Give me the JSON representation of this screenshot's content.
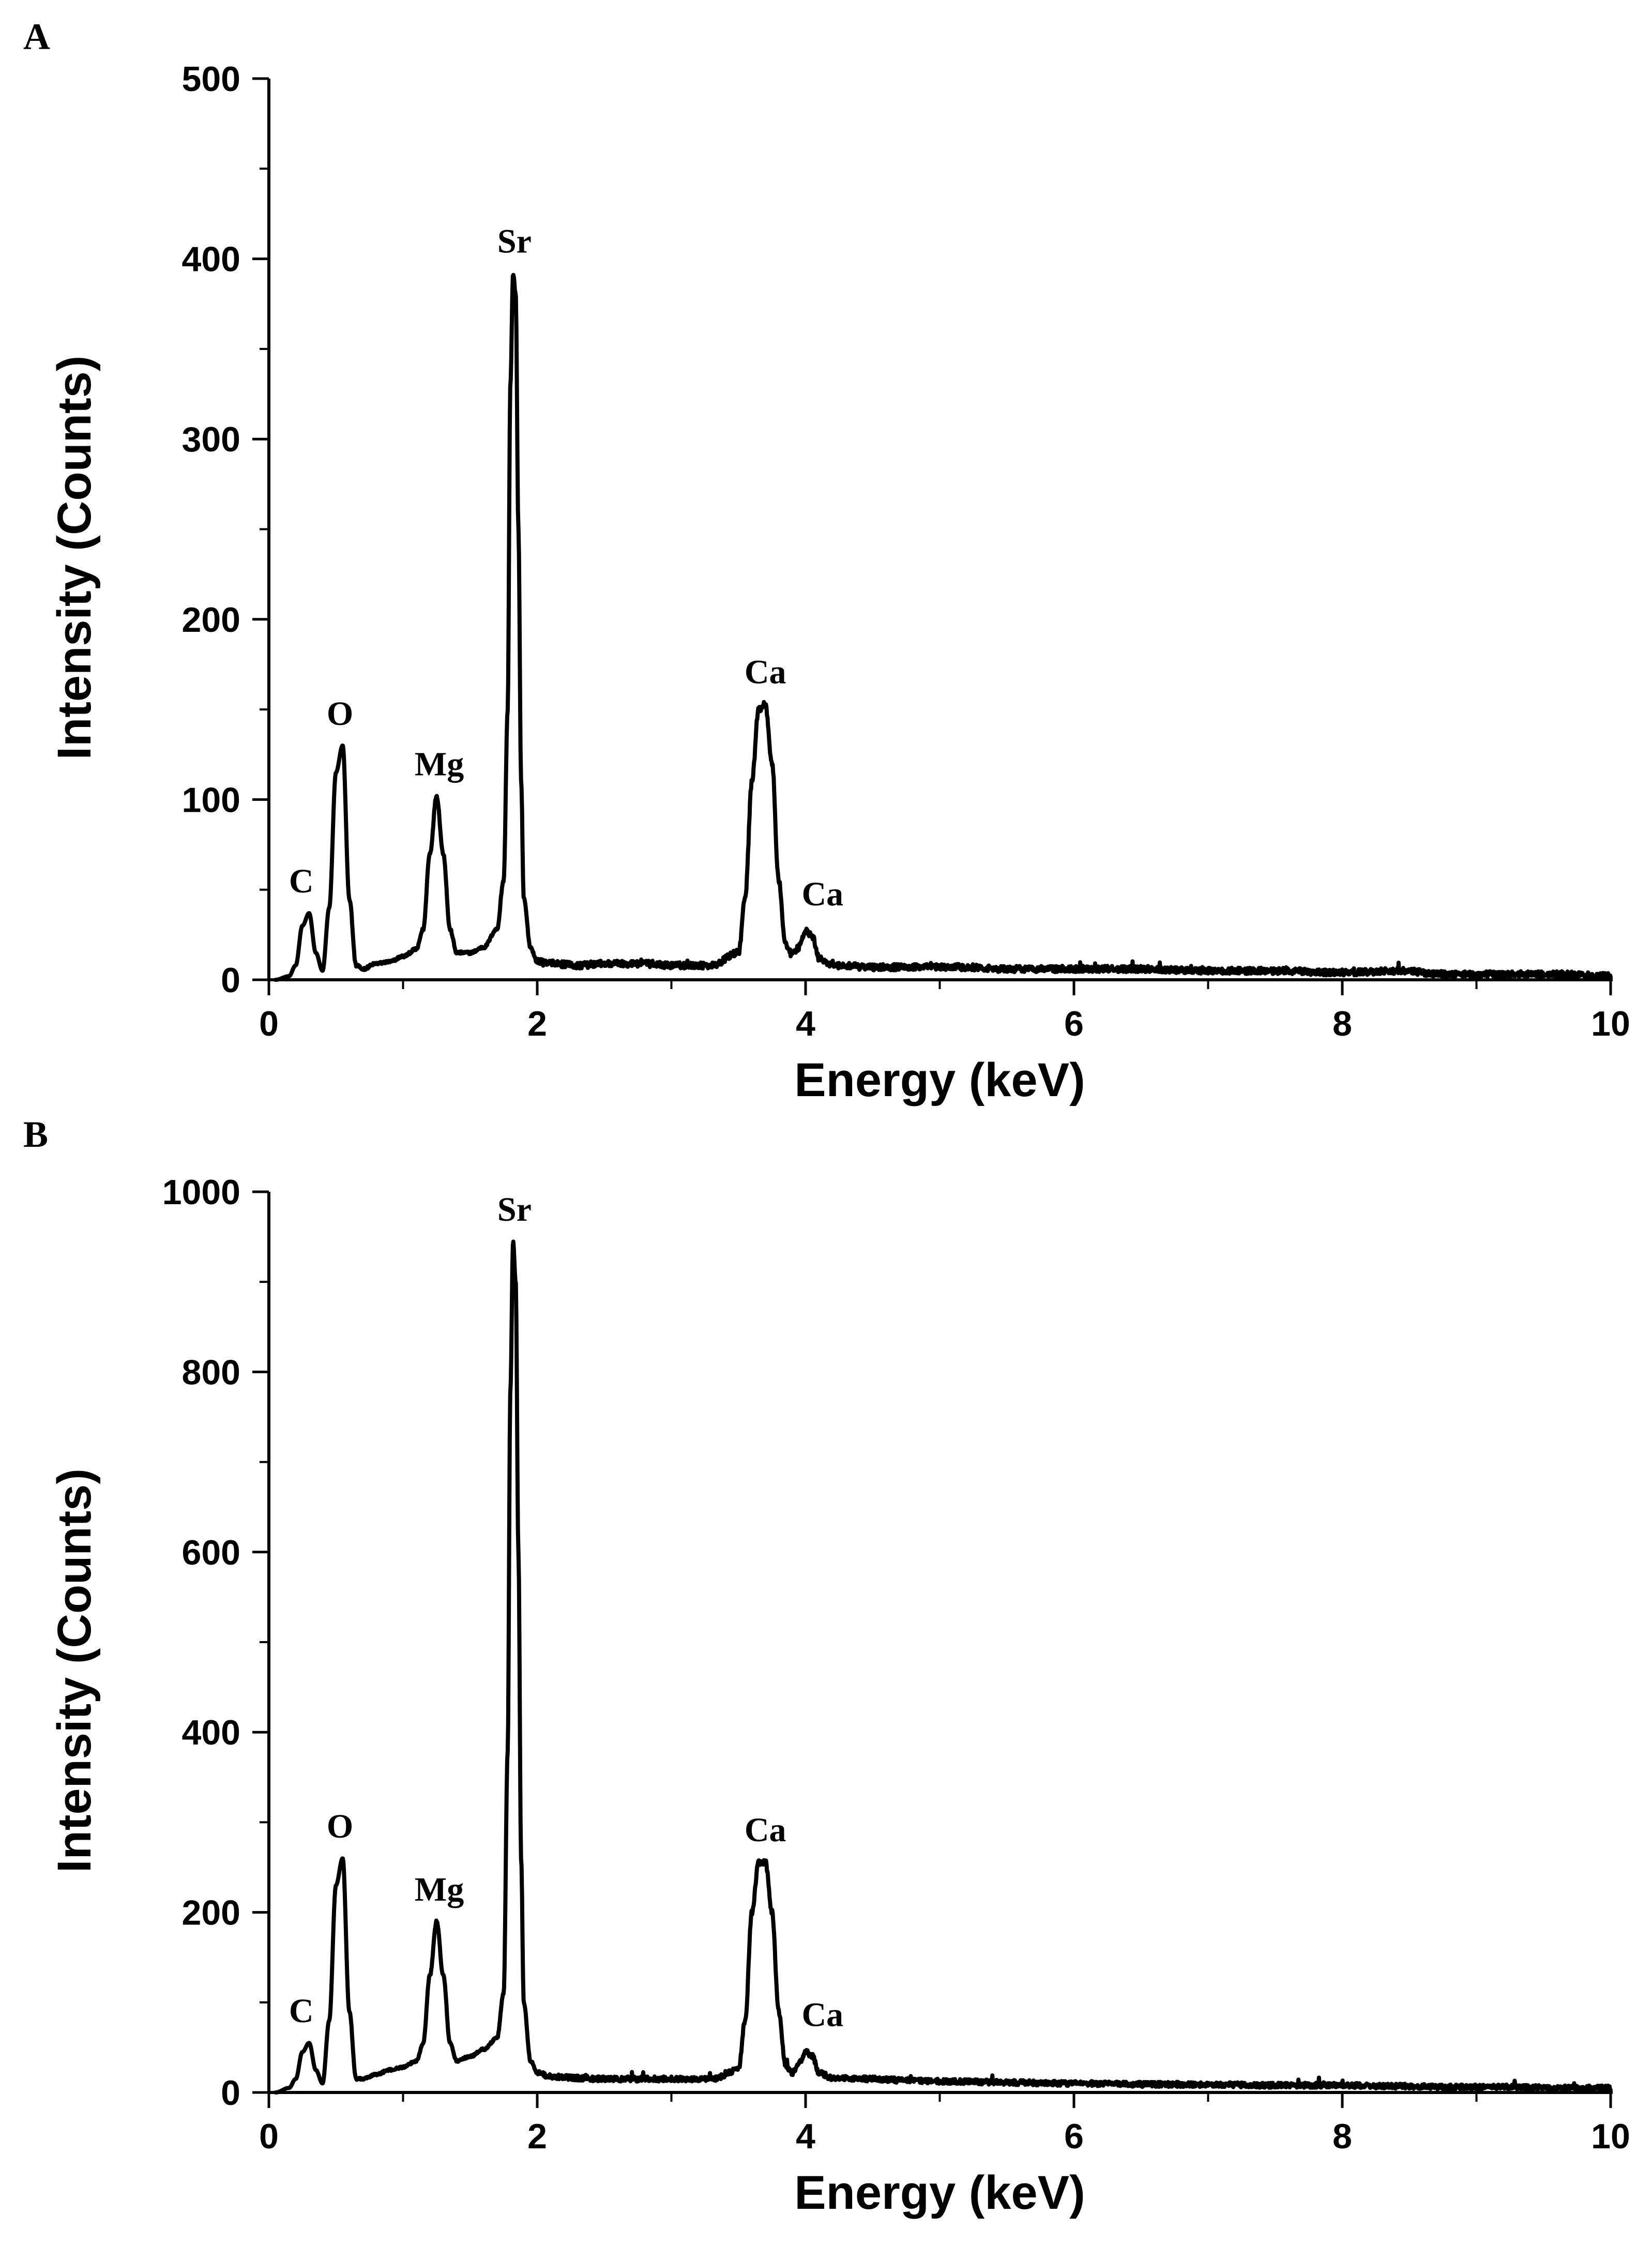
{
  "chart_data": [
    {
      "panel": "A",
      "type": "line",
      "xlabel": "Energy (keV)",
      "ylabel": "Intensity (Counts)",
      "xlim": [
        0,
        10
      ],
      "ylim": [
        0,
        500
      ],
      "xticks": [
        0,
        2,
        4,
        6,
        8,
        10
      ],
      "yticks": [
        0,
        100,
        200,
        300,
        400,
        500
      ],
      "baseline_start": 3,
      "baseline_end": 2,
      "noise": 2.5,
      "series": [
        {
          "name": "EDX spectrum A",
          "x": [
            0.05,
            0.15,
            0.2,
            0.25,
            0.3,
            0.35,
            0.4,
            0.45,
            0.5,
            0.55,
            0.6,
            0.65,
            0.7,
            0.8,
            0.9,
            1.0,
            1.1,
            1.15,
            1.2,
            1.25,
            1.3,
            1.35,
            1.4,
            1.5,
            1.6,
            1.7,
            1.75,
            1.78,
            1.8,
            1.82,
            1.84,
            1.86,
            1.88,
            1.9,
            1.95,
            2.0,
            2.1,
            2.3,
            2.5,
            2.75,
            3.0,
            3.3,
            3.5,
            3.55,
            3.6,
            3.65,
            3.7,
            3.75,
            3.8,
            3.85,
            3.9,
            3.95,
            4.0,
            4.05,
            4.1,
            4.2,
            4.5,
            4.8,
            5.2,
            5.5,
            6.0,
            6.5,
            7.0,
            7.5,
            8.0,
            8.4,
            8.8,
            9.2,
            9.6,
            10.0
          ],
          "y": [
            0,
            2,
            8,
            30,
            37,
            15,
            5,
            40,
            115,
            130,
            45,
            8,
            6,
            9,
            10,
            13,
            17,
            28,
            70,
            102,
            70,
            28,
            15,
            15,
            18,
            28,
            55,
            150,
            330,
            392,
            380,
            250,
            110,
            45,
            18,
            10,
            9,
            8,
            9,
            9,
            8,
            8,
            15,
            45,
            110,
            150,
            153,
            120,
            55,
            20,
            14,
            18,
            27,
            24,
            12,
            8,
            7,
            7,
            7,
            6,
            6,
            6,
            5,
            5,
            4,
            5,
            3,
            3,
            3,
            2
          ]
        }
      ],
      "annotations": [
        {
          "text": "C",
          "x": 0.28,
          "y": 37
        },
        {
          "text": "O",
          "x": 0.53,
          "y": 130
        },
        {
          "text": "Mg",
          "x": 1.27,
          "y": 102
        },
        {
          "text": "Sr",
          "x": 1.83,
          "y": 392
        },
        {
          "text": "Ca",
          "x": 3.7,
          "y": 153
        },
        {
          "text": "Ca",
          "x": 4.03,
          "y": 27
        }
      ]
    },
    {
      "panel": "B",
      "type": "line",
      "xlabel": "Energy (keV)",
      "ylabel": "Intensity (Counts)",
      "xlim": [
        0,
        10
      ],
      "ylim": [
        0,
        1000
      ],
      "xticks": [
        0,
        2,
        4,
        6,
        8,
        10
      ],
      "yticks": [
        0,
        200,
        400,
        600,
        800,
        1000
      ],
      "baseline_start": 5,
      "baseline_end": 3,
      "noise": 4,
      "series": [
        {
          "name": "EDX spectrum B",
          "x": [
            0.05,
            0.15,
            0.2,
            0.25,
            0.3,
            0.35,
            0.4,
            0.45,
            0.5,
            0.55,
            0.6,
            0.65,
            0.7,
            0.8,
            0.9,
            1.0,
            1.1,
            1.15,
            1.2,
            1.25,
            1.3,
            1.35,
            1.4,
            1.5,
            1.6,
            1.7,
            1.75,
            1.78,
            1.8,
            1.82,
            1.84,
            1.86,
            1.88,
            1.9,
            1.95,
            2.0,
            2.1,
            2.3,
            2.5,
            2.75,
            3.0,
            3.3,
            3.5,
            3.55,
            3.6,
            3.65,
            3.7,
            3.75,
            3.8,
            3.85,
            3.9,
            3.95,
            4.0,
            4.05,
            4.1,
            4.2,
            4.5,
            4.8,
            5.2,
            5.5,
            6.0,
            6.5,
            7.0,
            7.5,
            8.0,
            8.4,
            8.8,
            9.2,
            9.6,
            10.0
          ],
          "y": [
            0,
            5,
            15,
            45,
            55,
            25,
            10,
            80,
            230,
            260,
            90,
            15,
            15,
            20,
            25,
            28,
            35,
            55,
            130,
            190,
            130,
            55,
            35,
            40,
            48,
            60,
            110,
            380,
            780,
            945,
            900,
            600,
            260,
            100,
            35,
            22,
            18,
            16,
            15,
            15,
            15,
            15,
            25,
            80,
            200,
            255,
            256,
            200,
            90,
            30,
            22,
            32,
            45,
            40,
            22,
            16,
            15,
            13,
            12,
            11,
            10,
            9,
            9,
            8,
            8,
            7,
            6,
            6,
            5,
            5
          ]
        }
      ],
      "annotations": [
        {
          "text": "C",
          "x": 0.28,
          "y": 55
        },
        {
          "text": "O",
          "x": 0.53,
          "y": 260
        },
        {
          "text": "Mg",
          "x": 1.27,
          "y": 190
        },
        {
          "text": "Sr",
          "x": 1.83,
          "y": 945
        },
        {
          "text": "Ca",
          "x": 3.7,
          "y": 256
        },
        {
          "text": "Ca",
          "x": 4.03,
          "y": 45
        }
      ]
    }
  ]
}
